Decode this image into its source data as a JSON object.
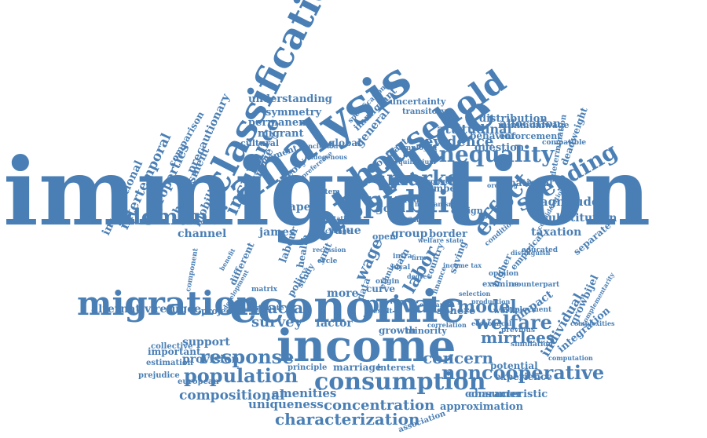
{
  "colors": {
    "text": "#4a7fb5",
    "background": "#ffffff"
  },
  "words": [
    {
      "text": "immigration"
    },
    {
      "text": "economic"
    },
    {
      "text": "income"
    },
    {
      "text": "attitude"
    },
    {
      "text": "analysis"
    },
    {
      "text": "classification"
    },
    {
      "text": "household"
    },
    {
      "text": "public"
    },
    {
      "text": "migration"
    },
    {
      "text": "consumption"
    },
    {
      "text": "private"
    },
    {
      "text": "market"
    },
    {
      "text": "inequality"
    },
    {
      "text": "demand"
    },
    {
      "text": "spending"
    },
    {
      "text": "effect"
    },
    {
      "text": "noncooperative"
    },
    {
      "text": "insurance"
    },
    {
      "text": "population"
    },
    {
      "text": "welfare"
    },
    {
      "text": "response"
    },
    {
      "text": "model"
    },
    {
      "text": "characterization"
    },
    {
      "text": "concentration"
    },
    {
      "text": "racial"
    },
    {
      "text": "survey"
    },
    {
      "text": "concern"
    },
    {
      "text": "mirrlees"
    },
    {
      "text": "evidence"
    },
    {
      "text": "labor"
    },
    {
      "text": "wage"
    },
    {
      "text": "compositional"
    },
    {
      "text": "uniqueness"
    },
    {
      "text": "amenities"
    },
    {
      "text": "approximation"
    },
    {
      "text": "characteristic"
    },
    {
      "text": "magnitude"
    },
    {
      "text": "substitution"
    },
    {
      "text": "taxation"
    },
    {
      "text": "national"
    },
    {
      "text": "individual"
    },
    {
      "text": "integration"
    },
    {
      "text": "impact"
    },
    {
      "text": "alternative"
    },
    {
      "text": "refugee"
    },
    {
      "text": "support"
    },
    {
      "text": "provision"
    },
    {
      "text": "important"
    },
    {
      "text": "intertemporal"
    },
    {
      "text": "international"
    },
    {
      "text": "properties"
    },
    {
      "text": "harassment"
    },
    {
      "text": "mobility"
    },
    {
      "text": "precautionary"
    },
    {
      "text": "comparison"
    },
    {
      "text": "channel"
    },
    {
      "text": "paper"
    },
    {
      "text": "value"
    },
    {
      "text": "group"
    },
    {
      "text": "border"
    },
    {
      "text": "good"
    },
    {
      "text": "james"
    },
    {
      "text": "labour"
    },
    {
      "text": "health"
    },
    {
      "text": "different"
    },
    {
      "text": "more"
    },
    {
      "text": "factor"
    },
    {
      "text": "sphere"
    },
    {
      "text": "curve"
    },
    {
      "text": "growth"
    },
    {
      "text": "minority"
    },
    {
      "text": "interest"
    },
    {
      "text": "marriage"
    },
    {
      "text": "principle"
    },
    {
      "text": "consumer"
    },
    {
      "text": "potential"
    },
    {
      "text": "experience"
    },
    {
      "text": "separate"
    },
    {
      "text": "higher"
    },
    {
      "text": "allocation"
    },
    {
      "text": "question"
    },
    {
      "text": "behavior"
    },
    {
      "text": "enforcement"
    },
    {
      "text": "minimumwage"
    },
    {
      "text": "attitudinal"
    },
    {
      "text": "distribution"
    },
    {
      "text": "understanding"
    },
    {
      "text": "symmetry"
    },
    {
      "text": "permanent"
    },
    {
      "text": "migrant"
    },
    {
      "text": "cultural"
    },
    {
      "text": "global"
    },
    {
      "text": "general"
    },
    {
      "text": "immigrant"
    },
    {
      "text": "uncertainty"
    },
    {
      "text": "transitory"
    },
    {
      "text": "contract"
    },
    {
      "text": "theory"
    },
    {
      "text": "countrie"
    },
    {
      "text": "number"
    },
    {
      "text": "design"
    },
    {
      "text": "unit"
    },
    {
      "text": "study"
    },
    {
      "text": "gain"
    },
    {
      "text": "open"
    },
    {
      "text": "data"
    },
    {
      "text": "saving"
    },
    {
      "text": "country"
    },
    {
      "text": "policy"
    },
    {
      "text": "project"
    },
    {
      "text": "collective"
    },
    {
      "text": "estimation"
    },
    {
      "text": "prejudice"
    },
    {
      "text": "european"
    },
    {
      "text": "association"
    },
    {
      "text": "growbijel"
    },
    {
      "text": "determination"
    },
    {
      "text": "deadweight"
    },
    {
      "text": "employed"
    },
    {
      "text": "specification"
    },
    {
      "text": "simulation"
    },
    {
      "text": "empirical"
    },
    {
      "text": "examine"
    },
    {
      "text": "opinion"
    },
    {
      "text": "educated"
    },
    {
      "text": "compatible"
    },
    {
      "text": "employment"
    },
    {
      "text": "system"
    },
    {
      "text": "stronger"
    },
    {
      "text": "ordering"
    },
    {
      "text": "estimate"
    },
    {
      "text": "hostility"
    },
    {
      "text": "complementarity"
    },
    {
      "text": "component"
    },
    {
      "text": "matrix"
    },
    {
      "text": "result"
    },
    {
      "text": "worker"
    },
    {
      "text": "cycle"
    },
    {
      "text": "movement"
    },
    {
      "text": "unique"
    },
    {
      "text": "local"
    },
    {
      "text": "intra"
    },
    {
      "text": "ethnic"
    },
    {
      "text": "degree"
    },
    {
      "text": "origin"
    },
    {
      "text": "finance"
    },
    {
      "text": "distinguish"
    },
    {
      "text": "counterpart"
    },
    {
      "text": "previous"
    },
    {
      "text": "economical"
    },
    {
      "text": "consideration"
    },
    {
      "text": "complexities"
    },
    {
      "text": "computation"
    },
    {
      "text": "correlation"
    },
    {
      "text": "selection"
    },
    {
      "text": "production"
    },
    {
      "text": "exchange"
    },
    {
      "text": "firm"
    },
    {
      "text": "development"
    },
    {
      "text": "recession"
    },
    {
      "text": "income tax"
    },
    {
      "text": "benefit"
    },
    {
      "text": "welfare state"
    },
    {
      "text": "conclusion"
    },
    {
      "text": "endogenous"
    },
    {
      "text": "preference"
    },
    {
      "text": "equilibrium"
    },
    {
      "text": "change"
    },
    {
      "text": "statistics"
    },
    {
      "text": "inflation"
    },
    {
      "text": "mechanism"
    },
    {
      "text": "condition"
    }
  ]
}
